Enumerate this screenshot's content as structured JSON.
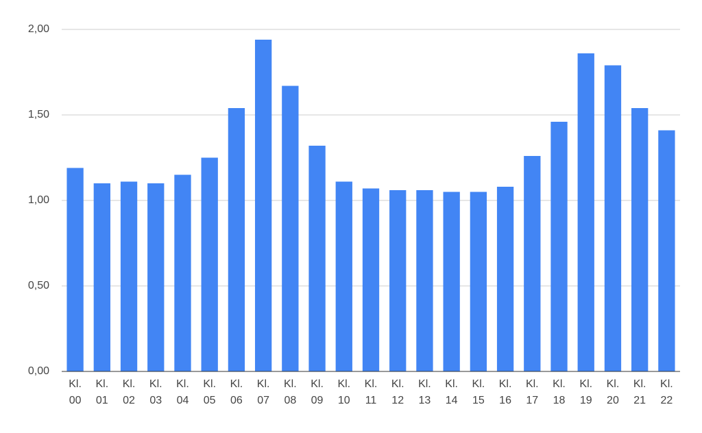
{
  "chart_data": {
    "type": "bar",
    "categories": [
      "Kl. 00",
      "Kl. 01",
      "Kl. 02",
      "Kl. 03",
      "Kl. 04",
      "Kl. 05",
      "Kl. 06",
      "Kl. 07",
      "Kl. 08",
      "Kl. 09",
      "Kl. 10",
      "Kl. 11",
      "Kl. 12",
      "Kl. 13",
      "Kl. 14",
      "Kl. 15",
      "Kl. 16",
      "Kl. 17",
      "Kl. 18",
      "Kl. 19",
      "Kl. 20",
      "Kl. 21",
      "Kl. 22"
    ],
    "values": [
      1.19,
      1.1,
      1.11,
      1.1,
      1.15,
      1.25,
      1.54,
      1.94,
      1.67,
      1.32,
      1.11,
      1.07,
      1.06,
      1.06,
      1.05,
      1.05,
      1.08,
      1.26,
      1.46,
      1.86,
      1.79,
      1.54,
      1.41
    ],
    "color": "#4285f4",
    "ylim": [
      0,
      2
    ],
    "yticks": [
      {
        "value": 0,
        "label": "0,00"
      },
      {
        "value": 0.5,
        "label": "0,50"
      },
      {
        "value": 1,
        "label": "1,00"
      },
      {
        "value": 1.5,
        "label": "1,50"
      },
      {
        "value": 2,
        "label": "2,00"
      }
    ],
    "grid": true
  }
}
